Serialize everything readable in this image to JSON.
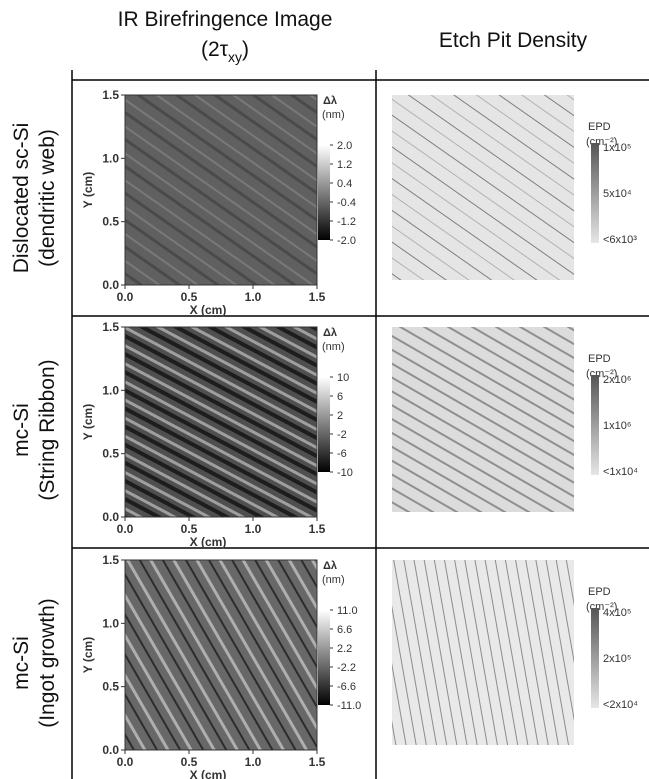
{
  "header": {
    "left_line1": "IR Birefringence Image",
    "left_line2": "(2τ",
    "left_sub": "xy",
    "left_close": ")",
    "right": "Etch Pit Density"
  },
  "rows": [
    {
      "label_line1": "Dislocated sc-Si",
      "label_line2": "(dendritic web)",
      "birefringence": {
        "xlabel": "X  (cm)",
        "ylabel": "Y  (cm)",
        "xticks": [
          {
            "value": 0,
            "label": "0.0"
          },
          {
            "value": 0.5,
            "label": "0.5"
          },
          {
            "value": 1,
            "label": "1.0"
          },
          {
            "value": 1.5,
            "label": "1.5"
          }
        ],
        "yticks": [
          {
            "value": 0,
            "label": "0.0"
          },
          {
            "value": 0.5,
            "label": "0.5"
          },
          {
            "value": 1,
            "label": "1.0"
          },
          {
            "value": 1.5,
            "label": "1.5"
          }
        ],
        "colorbar_title": "Δλ",
        "colorbar_unit": "(nm)",
        "colorbar_ticks": [
          {
            "value": 2,
            "label": "2.0"
          },
          {
            "value": 1.2,
            "label": "1.2"
          },
          {
            "value": 0.4,
            "label": "0.4"
          },
          {
            "value": -0.4,
            "label": "-0.4"
          },
          {
            "value": -1.2,
            "label": "-1.2"
          },
          {
            "value": -2,
            "label": "-2.0"
          }
        ]
      },
      "epd": {
        "colorbar_title": "EPD",
        "colorbar_unit": "(cm⁻²)",
        "colorbar_ticks": [
          "1x10⁵",
          "5x10⁴",
          "<6x10³"
        ]
      }
    },
    {
      "label_line1": "mc-Si",
      "label_line2": "(String Ribbon)",
      "birefringence": {
        "xlabel": "X  (cm)",
        "ylabel": "Y  (cm)",
        "xticks": [
          {
            "value": 0,
            "label": "0.0"
          },
          {
            "value": 0.5,
            "label": "0.5"
          },
          {
            "value": 1,
            "label": "1.0"
          },
          {
            "value": 1.5,
            "label": "1.5"
          }
        ],
        "yticks": [
          {
            "value": 0,
            "label": "0.0"
          },
          {
            "value": 0.5,
            "label": "0.5"
          },
          {
            "value": 1,
            "label": "1.0"
          },
          {
            "value": 1.5,
            "label": "1.5"
          }
        ],
        "colorbar_title": "Δλ",
        "colorbar_unit": "(nm)",
        "colorbar_ticks": [
          10,
          6,
          2,
          -2,
          -6,
          -10
        ]
      },
      "epd": {
        "colorbar_title": "EPD",
        "colorbar_unit": "(cm⁻²)",
        "colorbar_ticks": [
          "2x10⁶",
          "1x10⁶",
          "<1x10⁴"
        ]
      }
    },
    {
      "label_line1": "mc-Si",
      "label_line2": "(Ingot growth)",
      "birefringence": {
        "xlabel": "X  (cm)",
        "ylabel": "Y  (cm)",
        "xticks": [
          {
            "value": 0,
            "label": "0.0"
          },
          {
            "value": 0.5,
            "label": "0.5"
          },
          {
            "value": 1,
            "label": "1.0"
          },
          {
            "value": 1.5,
            "label": "1.5"
          }
        ],
        "yticks": [
          {
            "value": 0,
            "label": "0.0"
          },
          {
            "value": 0.5,
            "label": "0.5"
          },
          {
            "value": 1,
            "label": "1.0"
          },
          {
            "value": 1.5,
            "label": "1.5"
          }
        ],
        "colorbar_title": "Δλ",
        "colorbar_unit": "(nm)",
        "colorbar_ticks": [
          {
            "value": 11,
            "label": "11.0"
          },
          {
            "value": 6.6,
            "label": "6.6"
          },
          {
            "value": 2.2,
            "label": "2.2"
          },
          {
            "value": -2.2,
            "label": "-2.2"
          },
          {
            "value": -6.6,
            "label": "-6.6"
          },
          {
            "value": -11,
            "label": "-11.0"
          }
        ]
      },
      "epd": {
        "colorbar_title": "EPD",
        "colorbar_unit": "(cm⁻²)",
        "colorbar_ticks": [
          "4x10⁵",
          "2x10⁵",
          "<2x10⁴"
        ]
      }
    }
  ]
}
